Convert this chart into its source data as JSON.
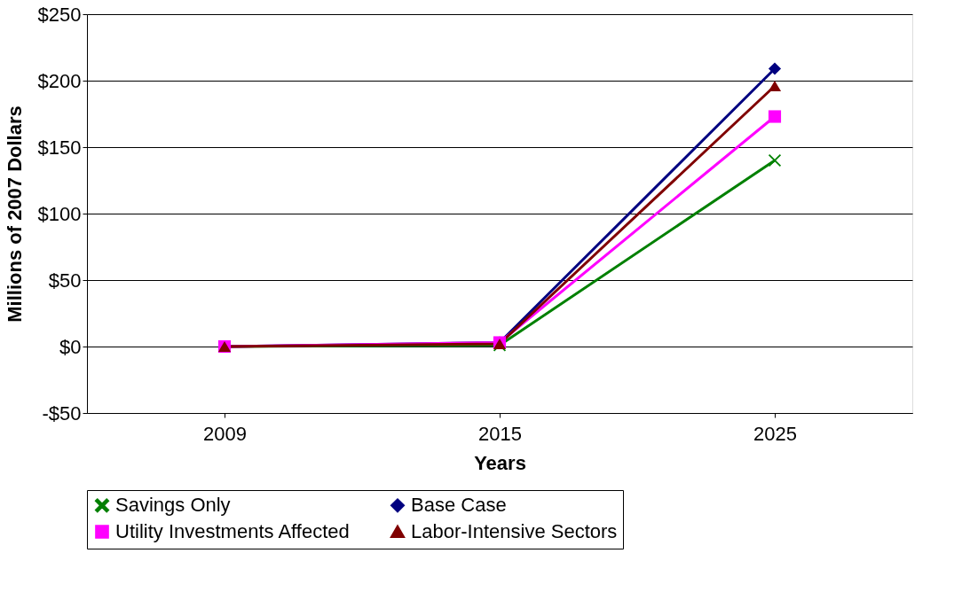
{
  "chart_data": {
    "type": "line",
    "xlabel": "Years",
    "ylabel": "Millions of 2007 Dollars",
    "categories": [
      "2009",
      "2015",
      "2025"
    ],
    "series": [
      {
        "name": "Savings Only",
        "color": "#008000",
        "marker": "cross",
        "values": [
          0,
          1,
          140
        ]
      },
      {
        "name": "Base Case",
        "color": "#000080",
        "marker": "diamond",
        "values": [
          0,
          3,
          209
        ]
      },
      {
        "name": "Utility Investments Affected",
        "color": "#ff00ff",
        "marker": "square",
        "values": [
          0,
          3,
          173
        ]
      },
      {
        "name": "Labor-Intensive Sectors",
        "color": "#800000",
        "marker": "triangle",
        "values": [
          0,
          2,
          196
        ]
      }
    ],
    "ylim": [
      -50,
      250
    ],
    "yticks": [
      {
        "value": -50,
        "label": "-$50"
      },
      {
        "value": 0,
        "label": "$0"
      },
      {
        "value": 50,
        "label": "$50"
      },
      {
        "value": 100,
        "label": "$100"
      },
      {
        "value": 150,
        "label": "$150"
      },
      {
        "value": 200,
        "label": "$200"
      },
      {
        "value": 250,
        "label": "$250"
      }
    ],
    "grid": "y",
    "legend": "bottom",
    "line_style": "solid"
  }
}
